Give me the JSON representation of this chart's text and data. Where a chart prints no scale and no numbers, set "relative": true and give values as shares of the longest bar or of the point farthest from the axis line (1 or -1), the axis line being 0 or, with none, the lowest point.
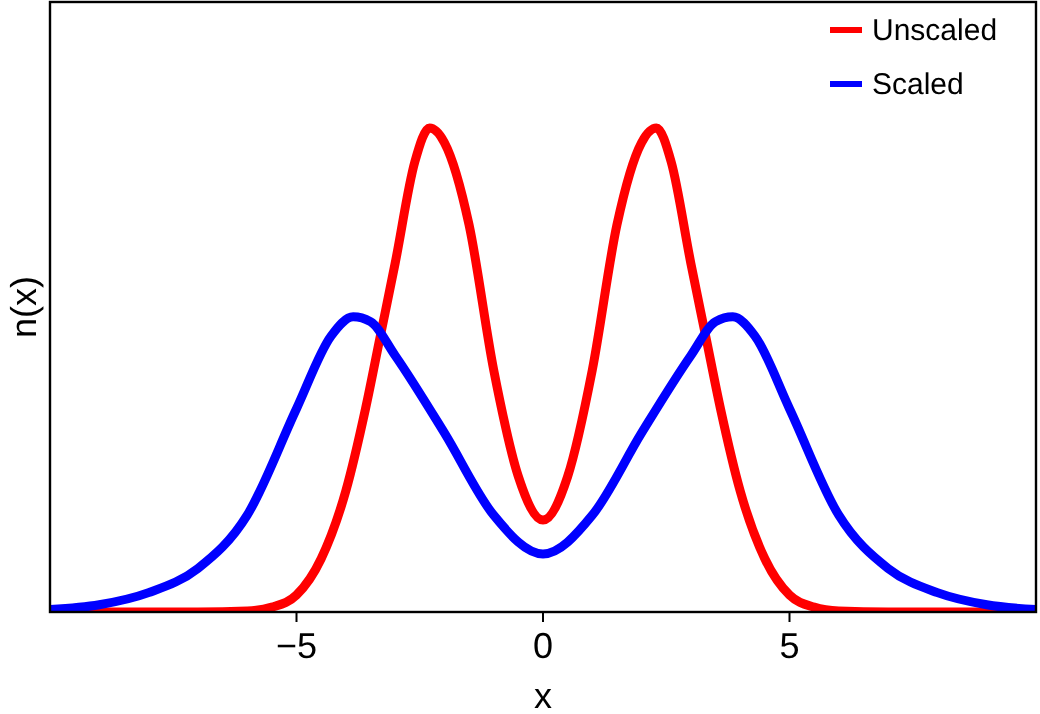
{
  "chart_data": {
    "type": "line",
    "xlabel": "x",
    "ylabel": "n(x)",
    "relative": true,
    "xlim": [
      -10,
      10
    ],
    "xticks": [
      {
        "value": -5,
        "label": "−5"
      },
      0,
      5
    ],
    "legend": "top right",
    "grid": false,
    "marker": "none",
    "line_style": "solid",
    "series": [
      {
        "name": "Unscaled",
        "color": "#ff0000",
        "x": [
          -10,
          -7,
          -6,
          -5.5,
          -5,
          -4.5,
          -4,
          -3.6,
          -3.3,
          -3,
          -2.6,
          -2.3,
          -2,
          -1.5,
          -1,
          -0.5,
          0,
          0.5,
          1,
          1.5,
          2,
          2.3,
          2.6,
          3,
          3.3,
          3.6,
          4,
          4.5,
          5,
          5.5,
          6,
          7,
          10
        ],
        "values": [
          0,
          0,
          0.002,
          0.01,
          0.035,
          0.11,
          0.25,
          0.42,
          0.57,
          0.72,
          0.93,
          1,
          0.97,
          0.8,
          0.5,
          0.28,
          0.19,
          0.28,
          0.5,
          0.8,
          0.97,
          1,
          0.93,
          0.72,
          0.57,
          0.42,
          0.25,
          0.11,
          0.035,
          0.01,
          0.002,
          0,
          0
        ]
      },
      {
        "name": "Scaled",
        "color": "#0000ff",
        "x": [
          -10,
          -9,
          -8,
          -7,
          -6,
          -5,
          -4.3,
          -3.85,
          -3.5,
          -3,
          -2,
          -1,
          0,
          1,
          2,
          3,
          3.5,
          3.85,
          4.3,
          5,
          6,
          7,
          8,
          9,
          10
        ],
        "values": [
          0.005,
          0.015,
          0.04,
          0.09,
          0.2,
          0.42,
          0.57,
          0.61,
          0.6,
          0.53,
          0.37,
          0.2,
          0.12,
          0.2,
          0.37,
          0.53,
          0.6,
          0.61,
          0.57,
          0.42,
          0.2,
          0.09,
          0.04,
          0.015,
          0.005
        ]
      }
    ]
  }
}
